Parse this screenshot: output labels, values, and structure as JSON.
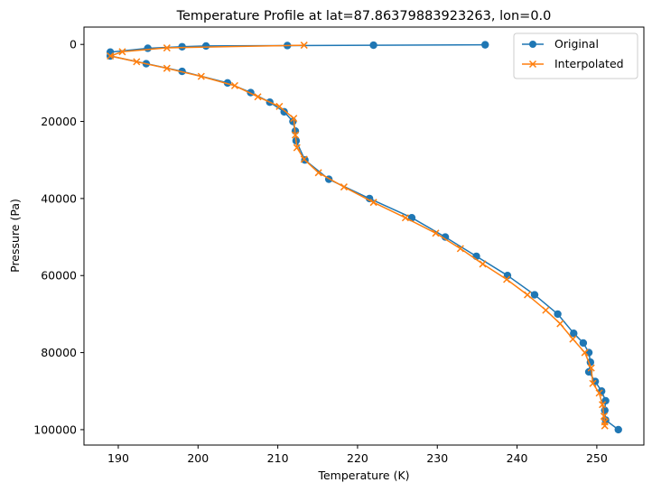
{
  "chart_data": {
    "type": "line",
    "title": "Temperature Profile at lat=87.86379883923263, lon=0.0",
    "xlabel": "Temperature (K)",
    "ylabel": "Pressure (Pa)",
    "xlim": [
      185.7,
      255.9
    ],
    "ylim": [
      104000,
      -4500
    ],
    "y_inverted": true,
    "xticks": [
      190,
      200,
      210,
      220,
      230,
      240,
      250
    ],
    "yticks": [
      0,
      20000,
      40000,
      60000,
      80000,
      100000
    ],
    "grid": false,
    "legend_position": "top-right",
    "series": [
      {
        "name": "Original",
        "marker": "circle",
        "color": "#1f77b4",
        "points": [
          [
            236.0,
            100
          ],
          [
            222.0,
            200
          ],
          [
            211.2,
            300
          ],
          [
            201.0,
            400
          ],
          [
            198.0,
            600
          ],
          [
            193.7,
            1000
          ],
          [
            189.0,
            2000
          ],
          [
            189.0,
            3000
          ],
          [
            193.5,
            5000
          ],
          [
            198.0,
            7000
          ],
          [
            203.7,
            10000
          ],
          [
            206.6,
            12500
          ],
          [
            209.0,
            15000
          ],
          [
            210.8,
            17500
          ],
          [
            211.9,
            20000
          ],
          [
            212.2,
            22500
          ],
          [
            212.3,
            25000
          ],
          [
            213.4,
            30000
          ],
          [
            216.4,
            35000
          ],
          [
            221.5,
            40000
          ],
          [
            226.8,
            45000
          ],
          [
            231.0,
            50000
          ],
          [
            234.9,
            55000
          ],
          [
            238.8,
            60000
          ],
          [
            242.2,
            65000
          ],
          [
            245.1,
            70000
          ],
          [
            247.1,
            75000
          ],
          [
            248.3,
            77500
          ],
          [
            249.0,
            80000
          ],
          [
            249.2,
            82500
          ],
          [
            249.0,
            85000
          ],
          [
            249.8,
            87500
          ],
          [
            250.6,
            90000
          ],
          [
            251.1,
            92500
          ],
          [
            251.0,
            95000
          ],
          [
            251.1,
            97500
          ],
          [
            252.7,
            100000
          ]
        ]
      },
      {
        "name": "Interpolated",
        "marker": "x",
        "color": "#ff7f0e",
        "points": [
          [
            213.3,
            200
          ],
          [
            196.1,
            900
          ],
          [
            190.5,
            1900
          ],
          [
            189.0,
            3000
          ],
          [
            192.3,
            4500
          ],
          [
            196.1,
            6200
          ],
          [
            200.4,
            8300
          ],
          [
            204.6,
            10700
          ],
          [
            207.5,
            13600
          ],
          [
            210.2,
            16100
          ],
          [
            212.0,
            19200
          ],
          [
            212.2,
            23500
          ],
          [
            212.4,
            26800
          ],
          [
            213.3,
            29800
          ],
          [
            215.1,
            33300
          ],
          [
            218.3,
            37000
          ],
          [
            222.0,
            41000
          ],
          [
            226.0,
            45000
          ],
          [
            229.8,
            49000
          ],
          [
            232.9,
            53000
          ],
          [
            235.7,
            57000
          ],
          [
            238.7,
            61000
          ],
          [
            241.3,
            65000
          ],
          [
            243.6,
            69000
          ],
          [
            245.4,
            72500
          ],
          [
            247.0,
            76500
          ],
          [
            248.5,
            80000
          ],
          [
            249.3,
            84000
          ],
          [
            249.5,
            88000
          ],
          [
            250.3,
            90500
          ],
          [
            250.7,
            93500
          ],
          [
            250.9,
            96500
          ],
          [
            251.0,
            98000
          ],
          [
            251.0,
            99000
          ]
        ]
      }
    ]
  }
}
